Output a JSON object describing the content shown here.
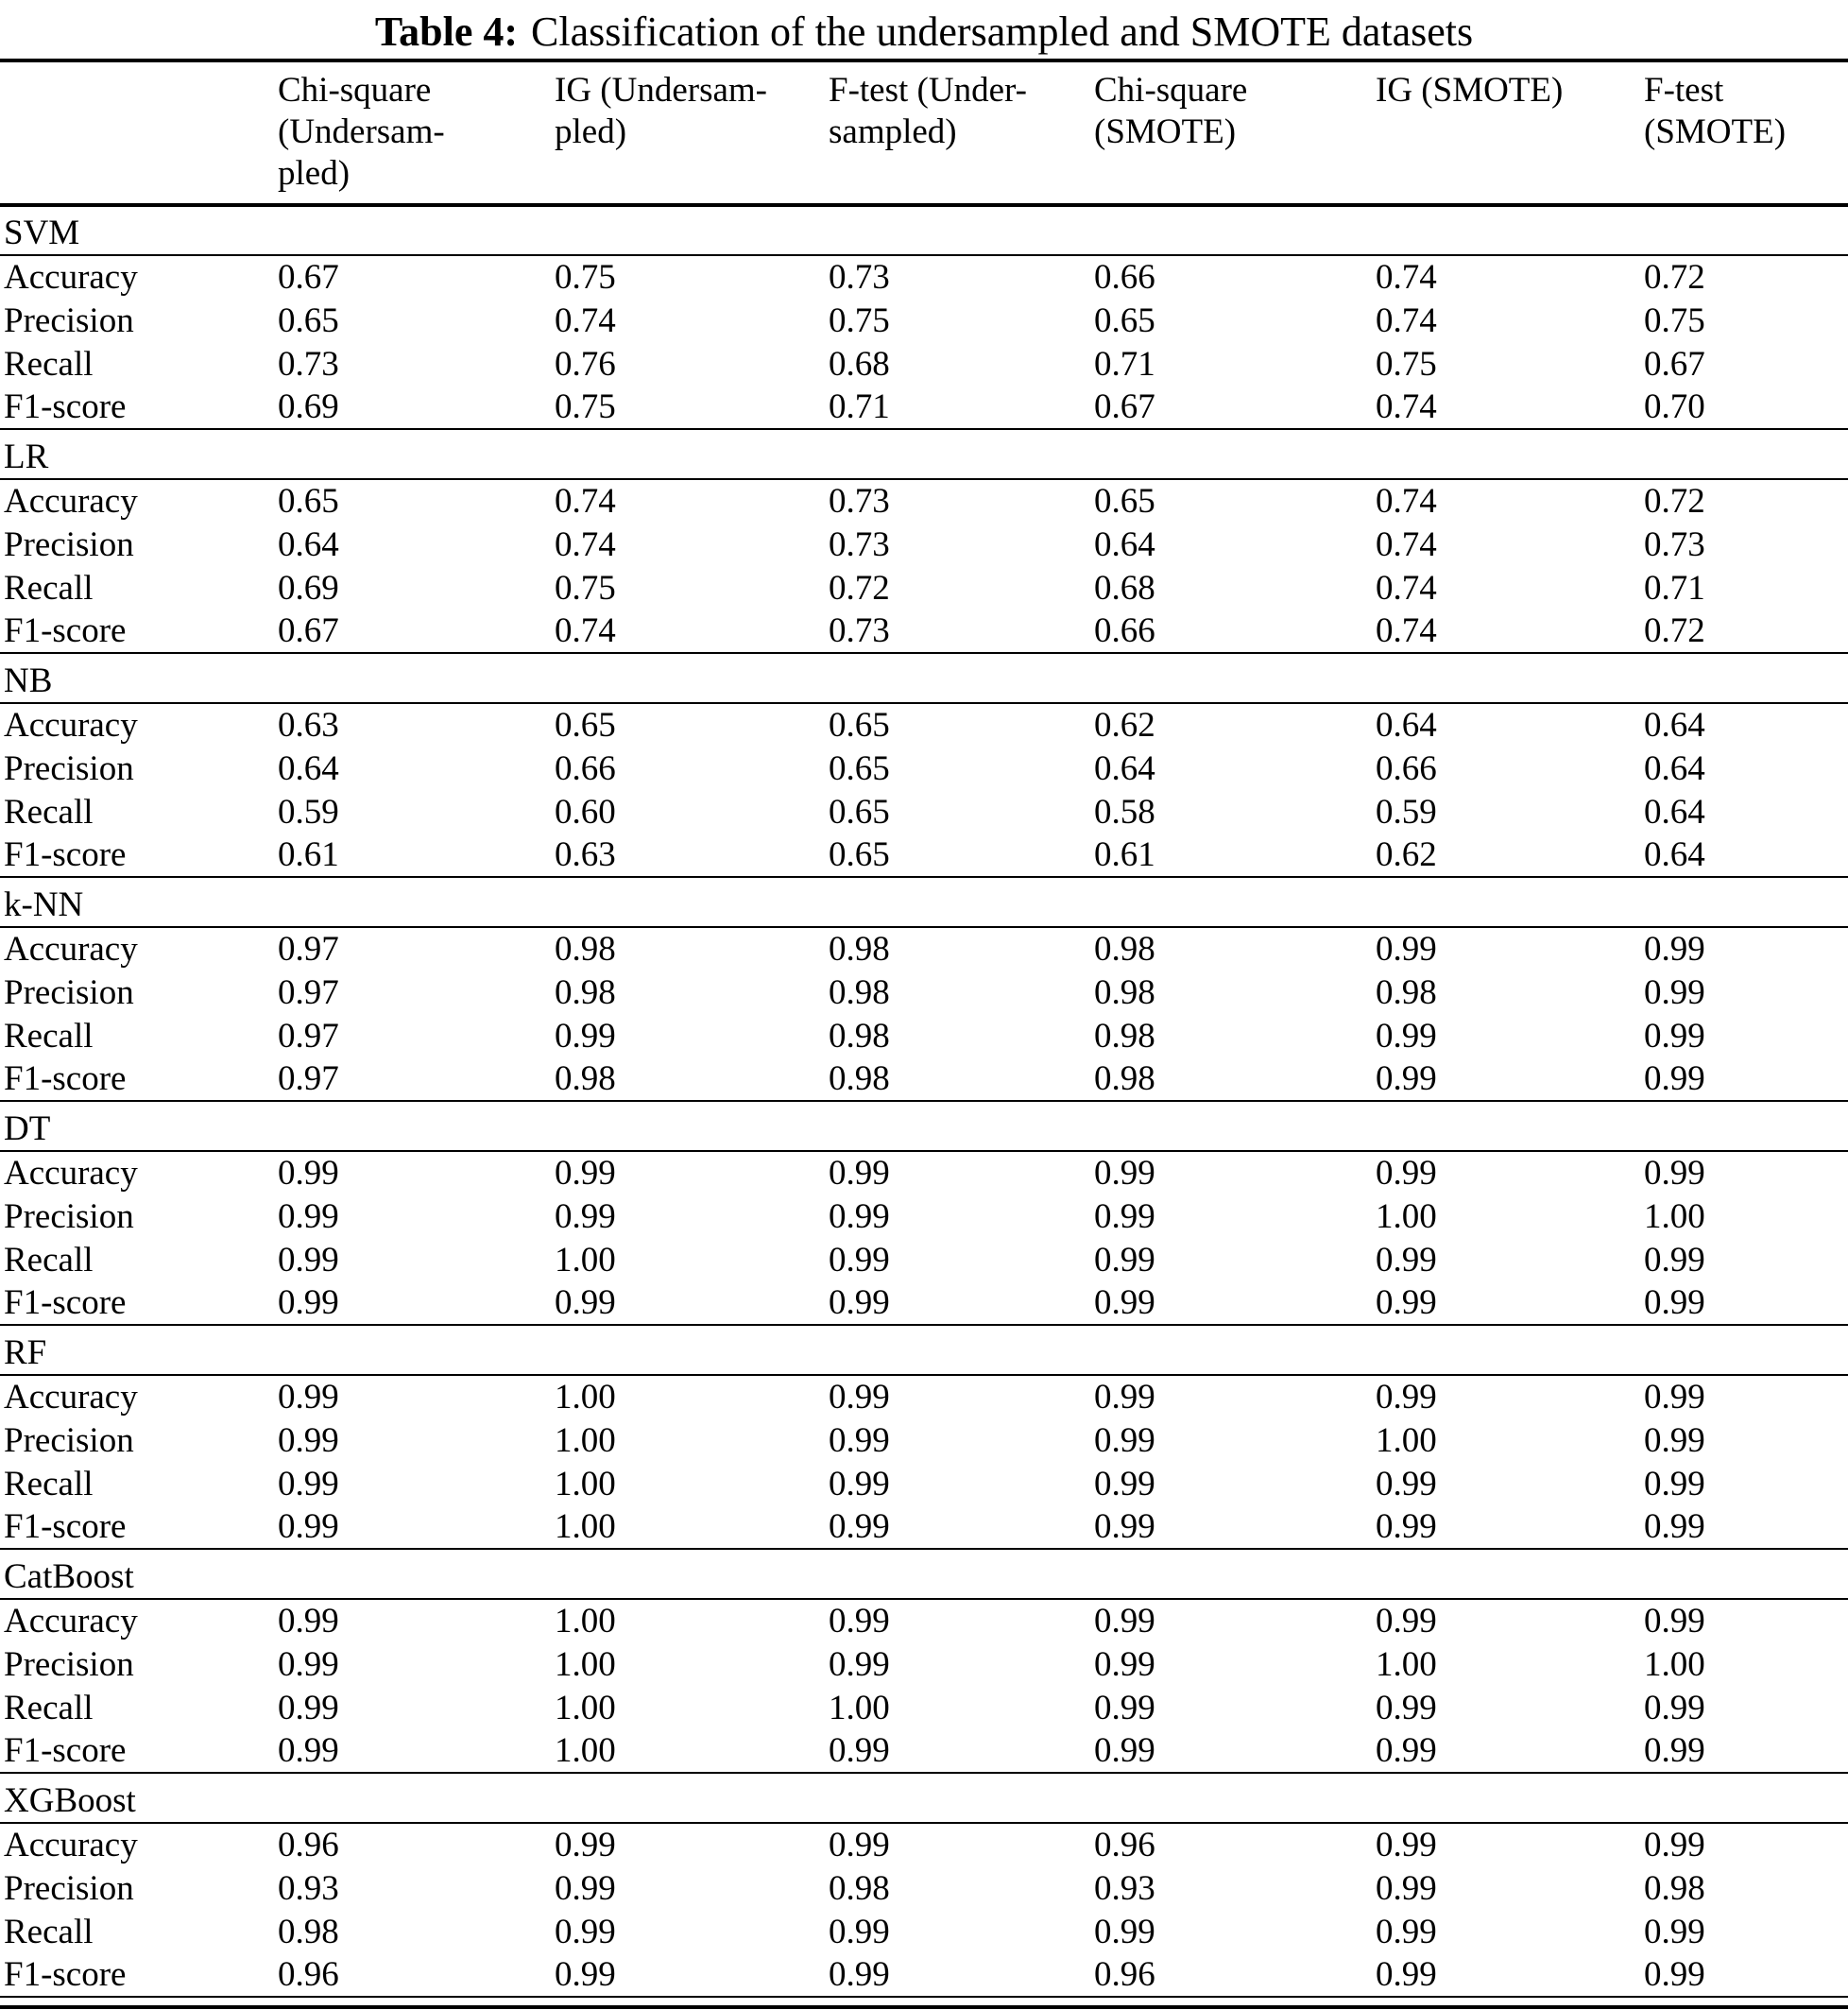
{
  "title": {
    "prefix": "Table 4:",
    "text": "Classification of the undersampled and SMOTE datasets"
  },
  "table": {
    "columns": [
      {
        "label": ""
      },
      {
        "label": "Chi-square\n(Undersam-\npled)"
      },
      {
        "label": "IG (Undersam-\npled)"
      },
      {
        "label": "F-test (Under-\nsampled)"
      },
      {
        "label": "Chi-square\n(SMOTE)"
      },
      {
        "label": "IG (SMOTE)"
      },
      {
        "label": "F-test\n(SMOTE)"
      }
    ],
    "metrics": [
      "Accuracy",
      "Precision",
      "Recall",
      "F1-score"
    ],
    "sections": [
      {
        "name": "SVM",
        "rows": [
          {
            "metric": "Accuracy",
            "values": [
              "0.67",
              "0.75",
              "0.73",
              "0.66",
              "0.74",
              "0.72"
            ]
          },
          {
            "metric": "Precision",
            "values": [
              "0.65",
              "0.74",
              "0.75",
              "0.65",
              "0.74",
              "0.75"
            ]
          },
          {
            "metric": "Recall",
            "values": [
              "0.73",
              "0.76",
              "0.68",
              "0.71",
              "0.75",
              "0.67"
            ]
          },
          {
            "metric": "F1-score",
            "values": [
              "0.69",
              "0.75",
              "0.71",
              "0.67",
              "0.74",
              "0.70"
            ]
          }
        ]
      },
      {
        "name": "LR",
        "rows": [
          {
            "metric": "Accuracy",
            "values": [
              "0.65",
              "0.74",
              "0.73",
              "0.65",
              "0.74",
              "0.72"
            ]
          },
          {
            "metric": "Precision",
            "values": [
              "0.64",
              "0.74",
              "0.73",
              "0.64",
              "0.74",
              "0.73"
            ]
          },
          {
            "metric": "Recall",
            "values": [
              "0.69",
              "0.75",
              "0.72",
              "0.68",
              "0.74",
              "0.71"
            ]
          },
          {
            "metric": "F1-score",
            "values": [
              "0.67",
              "0.74",
              "0.73",
              "0.66",
              "0.74",
              "0.72"
            ]
          }
        ]
      },
      {
        "name": "NB",
        "rows": [
          {
            "metric": "Accuracy",
            "values": [
              "0.63",
              "0.65",
              "0.65",
              "0.62",
              "0.64",
              "0.64"
            ]
          },
          {
            "metric": "Precision",
            "values": [
              "0.64",
              "0.66",
              "0.65",
              "0.64",
              "0.66",
              "0.64"
            ]
          },
          {
            "metric": "Recall",
            "values": [
              "0.59",
              "0.60",
              "0.65",
              "0.58",
              "0.59",
              "0.64"
            ]
          },
          {
            "metric": "F1-score",
            "values": [
              "0.61",
              "0.63",
              "0.65",
              "0.61",
              "0.62",
              "0.64"
            ]
          }
        ]
      },
      {
        "name": "k-NN",
        "rows": [
          {
            "metric": "Accuracy",
            "values": [
              "0.97",
              "0.98",
              "0.98",
              "0.98",
              "0.99",
              "0.99"
            ]
          },
          {
            "metric": "Precision",
            "values": [
              "0.97",
              "0.98",
              "0.98",
              "0.98",
              "0.98",
              "0.99"
            ]
          },
          {
            "metric": "Recall",
            "values": [
              "0.97",
              "0.99",
              "0.98",
              "0.98",
              "0.99",
              "0.99"
            ]
          },
          {
            "metric": "F1-score",
            "values": [
              "0.97",
              "0.98",
              "0.98",
              "0.98",
              "0.99",
              "0.99"
            ]
          }
        ]
      },
      {
        "name": "DT",
        "rows": [
          {
            "metric": "Accuracy",
            "values": [
              "0.99",
              "0.99",
              "0.99",
              "0.99",
              "0.99",
              "0.99"
            ]
          },
          {
            "metric": "Precision",
            "values": [
              "0.99",
              "0.99",
              "0.99",
              "0.99",
              "1.00",
              "1.00"
            ]
          },
          {
            "metric": "Recall",
            "values": [
              "0.99",
              "1.00",
              "0.99",
              "0.99",
              "0.99",
              "0.99"
            ]
          },
          {
            "metric": "F1-score",
            "values": [
              "0.99",
              "0.99",
              "0.99",
              "0.99",
              "0.99",
              "0.99"
            ]
          }
        ]
      },
      {
        "name": "RF",
        "rows": [
          {
            "metric": "Accuracy",
            "values": [
              "0.99",
              "1.00",
              "0.99",
              "0.99",
              "0.99",
              "0.99"
            ]
          },
          {
            "metric": "Precision",
            "values": [
              "0.99",
              "1.00",
              "0.99",
              "0.99",
              "1.00",
              "0.99"
            ]
          },
          {
            "metric": "Recall",
            "values": [
              "0.99",
              "1.00",
              "0.99",
              "0.99",
              "0.99",
              "0.99"
            ]
          },
          {
            "metric": "F1-score",
            "values": [
              "0.99",
              "1.00",
              "0.99",
              "0.99",
              "0.99",
              "0.99"
            ]
          }
        ]
      },
      {
        "name": "CatBoost",
        "rows": [
          {
            "metric": "Accuracy",
            "values": [
              "0.99",
              "1.00",
              "0.99",
              "0.99",
              "0.99",
              "0.99"
            ]
          },
          {
            "metric": "Precision",
            "values": [
              "0.99",
              "1.00",
              "0.99",
              "0.99",
              "1.00",
              "1.00"
            ]
          },
          {
            "metric": "Recall",
            "values": [
              "0.99",
              "1.00",
              "1.00",
              "0.99",
              "0.99",
              "0.99"
            ]
          },
          {
            "metric": "F1-score",
            "values": [
              "0.99",
              "1.00",
              "0.99",
              "0.99",
              "0.99",
              "0.99"
            ]
          }
        ]
      },
      {
        "name": "XGBoost",
        "rows": [
          {
            "metric": "Accuracy",
            "values": [
              "0.96",
              "0.99",
              "0.99",
              "0.96",
              "0.99",
              "0.99"
            ]
          },
          {
            "metric": "Precision",
            "values": [
              "0.93",
              "0.99",
              "0.98",
              "0.93",
              "0.99",
              "0.98"
            ]
          },
          {
            "metric": "Recall",
            "values": [
              "0.98",
              "0.99",
              "0.99",
              "0.99",
              "0.99",
              "0.99"
            ]
          },
          {
            "metric": "F1-score",
            "values": [
              "0.96",
              "0.99",
              "0.99",
              "0.96",
              "0.99",
              "0.99"
            ]
          }
        ]
      }
    ],
    "colors": {
      "text": "#000000",
      "background": "#ffffff",
      "rule": "#000000"
    }
  }
}
